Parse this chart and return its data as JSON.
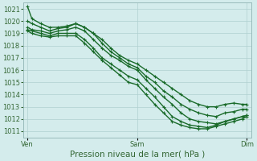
{
  "title": "Pression niveau de la mer( hPa )",
  "bg_color": "#d4ecec",
  "grid_color": "#b0d0d0",
  "line_color": "#1a6b2a",
  "ylim": [
    1010.5,
    1021.5
  ],
  "yticks": [
    1011,
    1012,
    1013,
    1014,
    1015,
    1016,
    1017,
    1018,
    1019,
    1020,
    1021
  ],
  "xtick_labels": [
    "Ven",
    "Sam",
    "Dim"
  ],
  "xtick_pos": [
    0.0,
    0.5,
    1.0
  ],
  "xlim": [
    -0.02,
    1.02
  ],
  "series": [
    {
      "x": [
        0.0,
        0.02,
        0.06,
        0.1,
        0.14,
        0.18,
        0.22,
        0.26,
        0.3,
        0.34,
        0.38,
        0.42,
        0.46,
        0.5,
        0.54,
        0.58,
        0.62,
        0.66,
        0.7,
        0.74,
        0.78,
        0.82,
        0.86,
        0.9,
        0.94,
        0.98,
        1.0
      ],
      "y": [
        1021.2,
        1020.2,
        1019.8,
        1019.5,
        1019.5,
        1019.6,
        1019.8,
        1019.5,
        1019.0,
        1018.5,
        1017.8,
        1017.2,
        1016.8,
        1016.5,
        1016.0,
        1015.5,
        1015.0,
        1014.5,
        1014.0,
        1013.5,
        1013.2,
        1013.0,
        1013.0,
        1013.2,
        1013.3,
        1013.2,
        1013.2
      ]
    },
    {
      "x": [
        0.0,
        0.02,
        0.06,
        0.1,
        0.14,
        0.18,
        0.22,
        0.26,
        0.3,
        0.34,
        0.38,
        0.42,
        0.46,
        0.5,
        0.54,
        0.58,
        0.62,
        0.66,
        0.7,
        0.74,
        0.78,
        0.82,
        0.86,
        0.9,
        0.94,
        0.98,
        1.0
      ],
      "y": [
        1020.0,
        1019.8,
        1019.5,
        1019.2,
        1019.4,
        1019.5,
        1019.8,
        1019.5,
        1019.0,
        1018.2,
        1017.5,
        1017.0,
        1016.5,
        1016.2,
        1015.5,
        1015.0,
        1014.3,
        1013.8,
        1013.2,
        1012.8,
        1012.5,
        1012.3,
        1012.2,
        1012.5,
        1012.6,
        1012.8,
        1012.8
      ]
    },
    {
      "x": [
        0.0,
        0.02,
        0.06,
        0.1,
        0.14,
        0.18,
        0.22,
        0.26,
        0.3,
        0.34,
        0.38,
        0.42,
        0.46,
        0.5,
        0.54,
        0.58,
        0.62,
        0.66,
        0.7,
        0.74,
        0.78,
        0.82,
        0.86,
        0.9,
        0.94,
        0.98,
        1.0
      ],
      "y": [
        1019.5,
        1019.3,
        1019.2,
        1019.0,
        1019.2,
        1019.3,
        1019.5,
        1019.2,
        1018.5,
        1017.8,
        1017.2,
        1016.8,
        1016.3,
        1016.0,
        1015.2,
        1014.5,
        1013.8,
        1013.2,
        1012.5,
        1012.0,
        1011.8,
        1011.7,
        1011.6,
        1011.8,
        1012.0,
        1012.2,
        1012.3
      ]
    },
    {
      "x": [
        0.0,
        0.02,
        0.06,
        0.1,
        0.14,
        0.18,
        0.22,
        0.26,
        0.3,
        0.34,
        0.38,
        0.42,
        0.46,
        0.5,
        0.54,
        0.58,
        0.62,
        0.66,
        0.7,
        0.74,
        0.78,
        0.82,
        0.86,
        0.9,
        0.94,
        0.98,
        1.0
      ],
      "y": [
        1019.3,
        1019.2,
        1019.0,
        1018.8,
        1019.0,
        1019.0,
        1019.0,
        1018.5,
        1017.8,
        1017.0,
        1016.5,
        1016.0,
        1015.5,
        1015.2,
        1014.5,
        1013.8,
        1013.0,
        1012.2,
        1011.8,
        1011.5,
        1011.4,
        1011.3,
        1011.5,
        1011.8,
        1012.0,
        1012.2,
        1012.3
      ]
    },
    {
      "x": [
        0.0,
        0.02,
        0.06,
        0.1,
        0.14,
        0.18,
        0.22,
        0.26,
        0.3,
        0.34,
        0.38,
        0.42,
        0.46,
        0.5,
        0.54,
        0.58,
        0.62,
        0.66,
        0.7,
        0.74,
        0.78,
        0.82,
        0.86,
        0.9,
        0.94,
        0.98,
        1.0
      ],
      "y": [
        1019.2,
        1019.0,
        1018.8,
        1018.7,
        1018.8,
        1018.8,
        1018.8,
        1018.2,
        1017.5,
        1016.8,
        1016.2,
        1015.6,
        1015.0,
        1014.8,
        1014.0,
        1013.2,
        1012.5,
        1011.8,
        1011.5,
        1011.3,
        1011.2,
        1011.2,
        1011.4,
        1011.6,
        1011.8,
        1012.0,
        1012.2
      ]
    }
  ],
  "marker": "+",
  "markersize": 3.5,
  "linewidth": 1.0,
  "title_fontsize": 7.5,
  "tick_fontsize": 6.0
}
